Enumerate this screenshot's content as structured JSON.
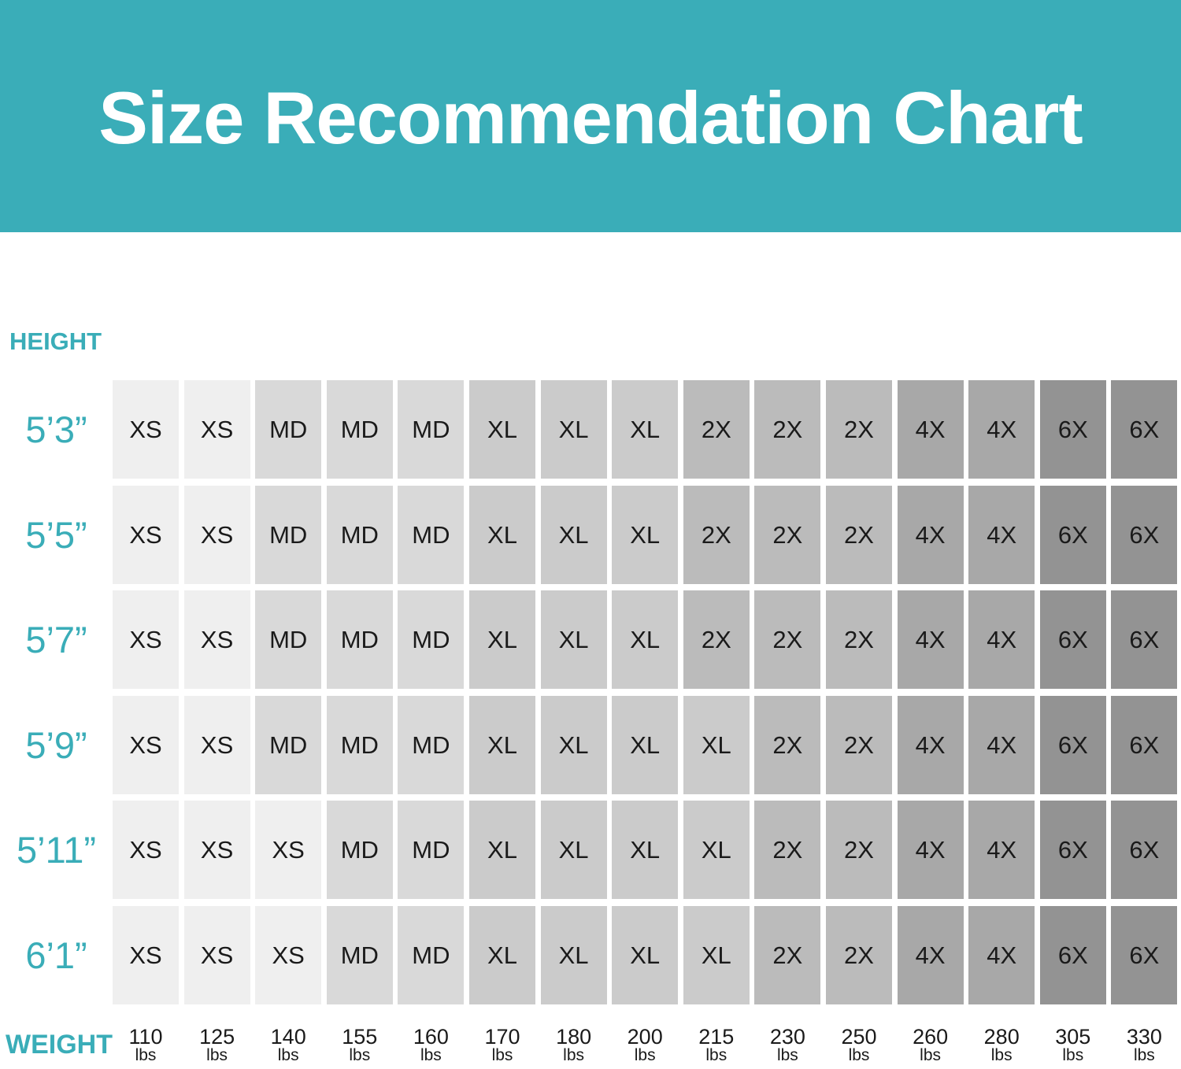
{
  "chart_data": {
    "type": "table",
    "title": "Size Recommendation Chart",
    "ylabel": "HEIGHT",
    "xlabel": "WEIGHT",
    "x_unit": "lbs",
    "weights": [
      "110",
      "125",
      "140",
      "155",
      "160",
      "170",
      "180",
      "200",
      "215",
      "230",
      "250",
      "260",
      "280",
      "305",
      "330"
    ],
    "heights": [
      "5’3”",
      "5’5”",
      "5’7”",
      "5’9”",
      "5’11”",
      "6’1”"
    ],
    "rows": [
      [
        "XS",
        "XS",
        "MD",
        "MD",
        "MD",
        "XL",
        "XL",
        "XL",
        "2X",
        "2X",
        "2X",
        "4X",
        "4X",
        "6X",
        "6X"
      ],
      [
        "XS",
        "XS",
        "MD",
        "MD",
        "MD",
        "XL",
        "XL",
        "XL",
        "2X",
        "2X",
        "2X",
        "4X",
        "4X",
        "6X",
        "6X"
      ],
      [
        "XS",
        "XS",
        "MD",
        "MD",
        "MD",
        "XL",
        "XL",
        "XL",
        "2X",
        "2X",
        "2X",
        "4X",
        "4X",
        "6X",
        "6X"
      ],
      [
        "XS",
        "XS",
        "MD",
        "MD",
        "MD",
        "XL",
        "XL",
        "XL",
        "XL",
        "2X",
        "2X",
        "4X",
        "4X",
        "6X",
        "6X"
      ],
      [
        "XS",
        "XS",
        "XS",
        "MD",
        "MD",
        "XL",
        "XL",
        "XL",
        "XL",
        "2X",
        "2X",
        "4X",
        "4X",
        "6X",
        "6X"
      ],
      [
        "XS",
        "XS",
        "XS",
        "MD",
        "MD",
        "XL",
        "XL",
        "XL",
        "XL",
        "2X",
        "2X",
        "4X",
        "4X",
        "6X",
        "6X"
      ]
    ],
    "size_colors": {
      "XS": "#efefef",
      "MD": "#d9d9d9",
      "XL": "#cbcbcb",
      "2X": "#bbbbbb",
      "4X": "#a8a8a8",
      "6X": "#939393"
    }
  },
  "colors": {
    "accent": "#3aadb8",
    "banner_text": "#ffffff"
  }
}
